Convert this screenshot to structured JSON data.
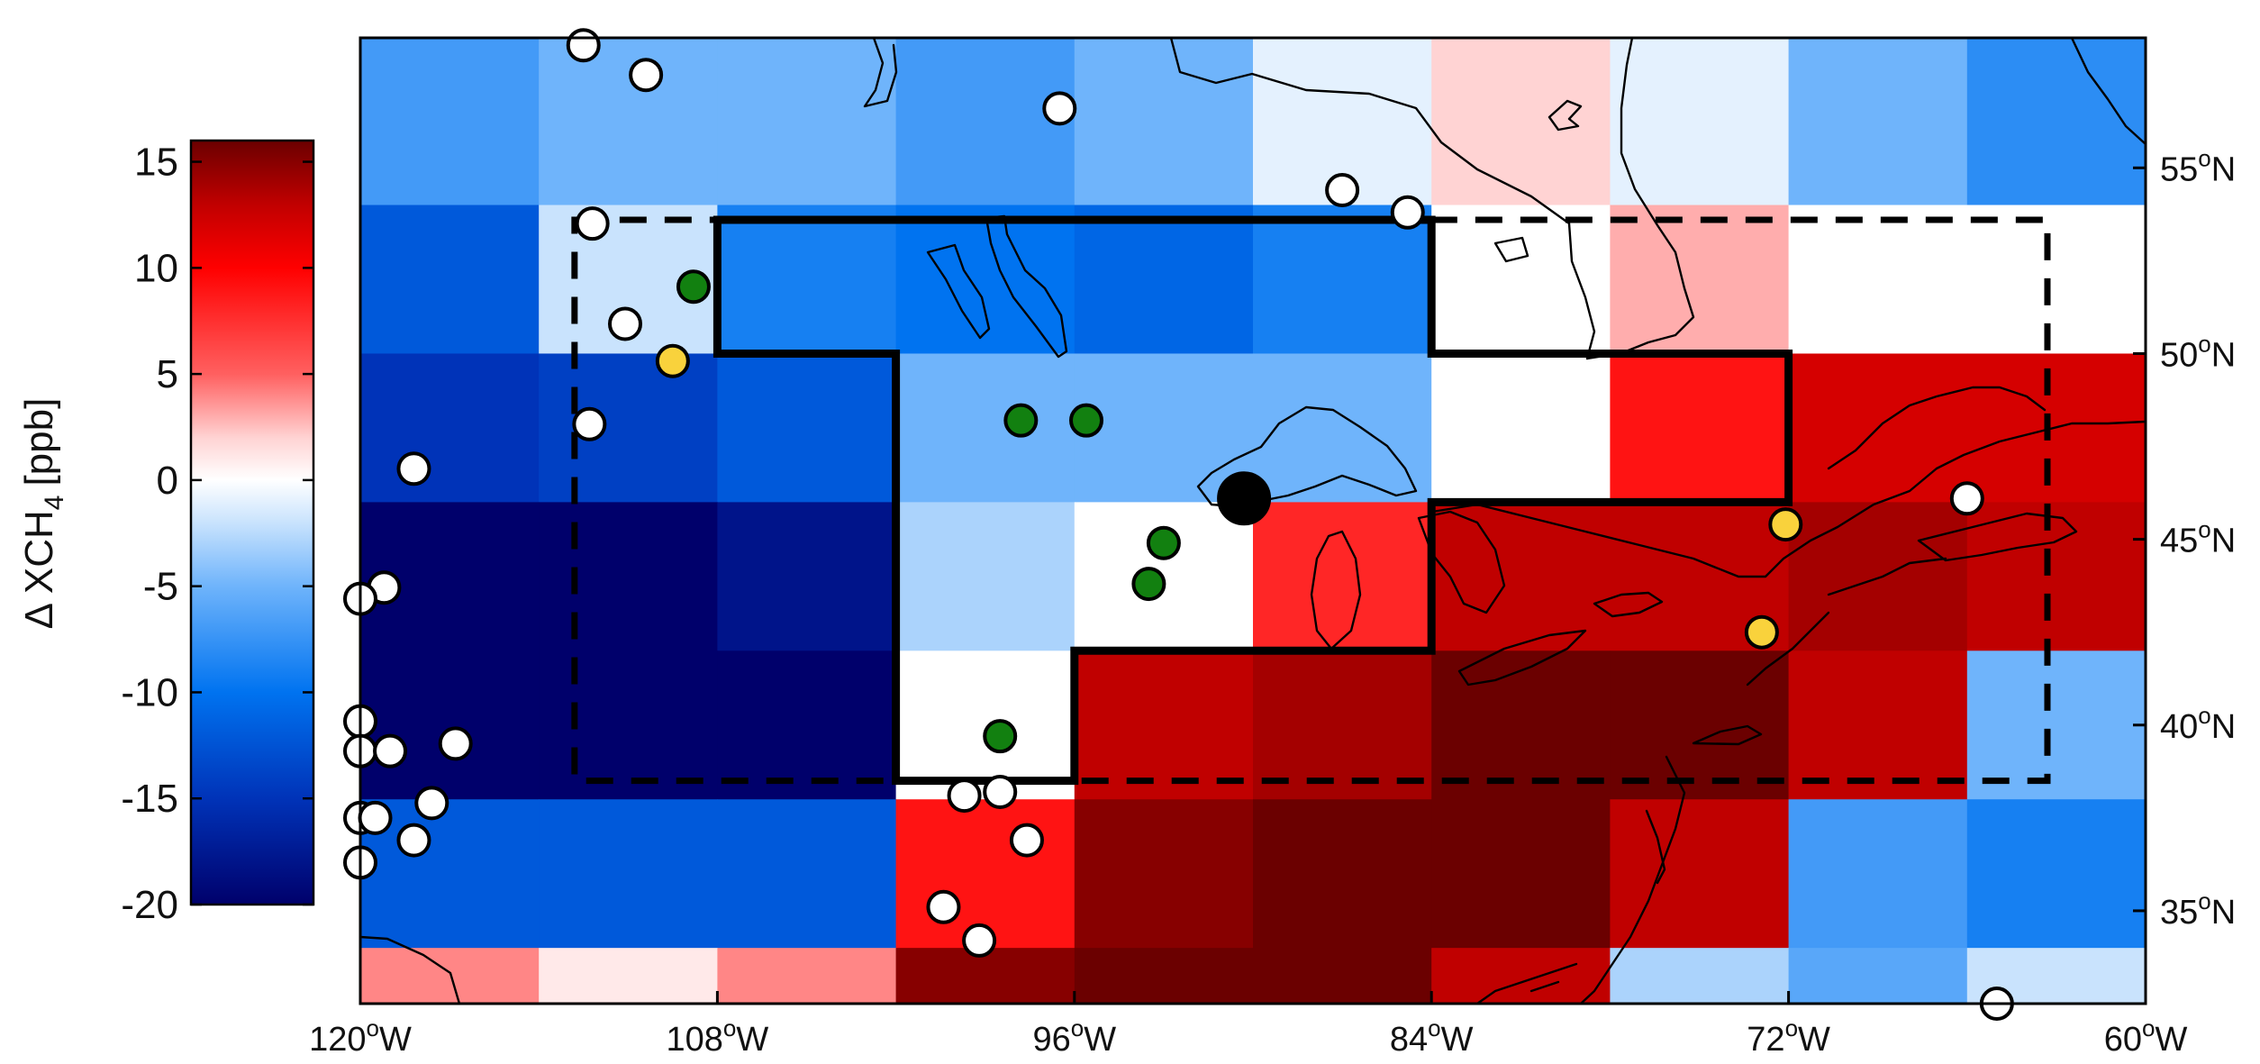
{
  "chart_data": {
    "type": "heatmap",
    "title": "",
    "xlabel": "",
    "ylabel": "",
    "colorbar": {
      "label_main": "Δ XCH",
      "label_sub": "4",
      "label_unit": "[ppb]",
      "range": [
        -20,
        16
      ],
      "ticks": [
        "15",
        "10",
        "5",
        "0",
        "-5",
        "-10",
        "-15",
        "-20"
      ],
      "tick_values": [
        15,
        10,
        5,
        0,
        -5,
        -10,
        -15,
        -20
      ],
      "colormap": "blue-white-red"
    },
    "x_ticks": [
      {
        "lon": -120,
        "num": "120",
        "deg": "o",
        "hem": "W"
      },
      {
        "lon": -108,
        "num": "108",
        "deg": "o",
        "hem": "W"
      },
      {
        "lon": -96,
        "num": "96",
        "deg": "o",
        "hem": "W"
      },
      {
        "lon": -84,
        "num": "84",
        "deg": "o",
        "hem": "W"
      },
      {
        "lon": -72,
        "num": "72",
        "deg": "o",
        "hem": "W"
      },
      {
        "lon": -60,
        "num": "60",
        "deg": "o",
        "hem": "W"
      }
    ],
    "y_ticks": [
      {
        "lat": 55,
        "num": "55",
        "deg": "o",
        "hem": "N"
      },
      {
        "lat": 50,
        "num": "50",
        "deg": "o",
        "hem": "N"
      },
      {
        "lat": 45,
        "num": "45",
        "deg": "o",
        "hem": "N"
      },
      {
        "lat": 40,
        "num": "40",
        "deg": "o",
        "hem": "N"
      },
      {
        "lat": 35,
        "num": "35",
        "deg": "o",
        "hem": "N"
      }
    ],
    "lon_range": [
      -120,
      -60
    ],
    "lat_range": [
      32.5,
      58.5
    ],
    "grid_lon_edges": [
      -120,
      -114,
      -108,
      -102,
      -96,
      -90,
      -84,
      -78,
      -72,
      -66,
      -60
    ],
    "grid_lat_edges": [
      58.5,
      54,
      50,
      46,
      42,
      38,
      34,
      32.5
    ],
    "grid_values": [
      [
        -7,
        -5,
        -5,
        -7,
        -5,
        -1,
        2,
        -1,
        -5,
        -8
      ],
      [
        -12,
        -2,
        -9,
        -10,
        -11,
        -9,
        0,
        3,
        0,
        0
      ],
      [
        -15,
        -14,
        -12,
        -5,
        -5,
        -5,
        0,
        9,
        12,
        12
      ],
      [
        -22,
        -22,
        -18,
        -3,
        0,
        8,
        13,
        13,
        14,
        13
      ],
      [
        -22,
        -22,
        -22,
        0,
        13,
        14,
        16,
        17,
        13,
        -5
      ],
      [
        -12,
        -12,
        -12,
        9,
        15,
        16,
        16,
        13,
        -7,
        -9
      ],
      [
        4,
        1,
        4,
        15,
        17,
        16,
        13,
        -3,
        -6,
        -2
      ]
    ],
    "solid_region_outline": [
      [
        -108,
        50
      ],
      [
        -108,
        53.6
      ],
      [
        -84,
        53.6
      ],
      [
        -84,
        50
      ],
      [
        -72,
        50
      ],
      [
        -72,
        46
      ],
      [
        -84,
        46
      ],
      [
        -84,
        42
      ],
      [
        -96,
        42
      ],
      [
        -96,
        38.5
      ],
      [
        -102,
        38.5
      ],
      [
        -102,
        50
      ]
    ],
    "dashed_region_box": {
      "west": -112.8,
      "east": -63.3,
      "south": 38.5,
      "north": 53.6
    },
    "sites": [
      {
        "lon": -112.5,
        "lat": 58.3,
        "color": "white"
      },
      {
        "lon": -110.4,
        "lat": 57.5,
        "color": "white"
      },
      {
        "lon": -96.5,
        "lat": 56.6,
        "color": "white"
      },
      {
        "lon": -87,
        "lat": 54.4,
        "color": "white"
      },
      {
        "lon": -84.8,
        "lat": 53.8,
        "color": "white"
      },
      {
        "lon": -112.2,
        "lat": 53.5,
        "color": "white"
      },
      {
        "lon": -111.1,
        "lat": 50.8,
        "color": "white"
      },
      {
        "lon": -112.3,
        "lat": 48.1,
        "color": "white"
      },
      {
        "lon": -118.2,
        "lat": 46.9,
        "color": "white"
      },
      {
        "lon": -119.2,
        "lat": 43.7,
        "color": "white"
      },
      {
        "lon": -120,
        "lat": 43.4,
        "color": "white"
      },
      {
        "lon": -120,
        "lat": 40.1,
        "color": "white"
      },
      {
        "lon": -120,
        "lat": 39.3,
        "color": "white"
      },
      {
        "lon": -119,
        "lat": 39.3,
        "color": "white"
      },
      {
        "lon": -116.8,
        "lat": 39.5,
        "color": "white"
      },
      {
        "lon": -117.6,
        "lat": 37.9,
        "color": "white"
      },
      {
        "lon": -120,
        "lat": 37.5,
        "color": "white"
      },
      {
        "lon": -119.5,
        "lat": 37.5,
        "color": "white"
      },
      {
        "lon": -118.2,
        "lat": 36.9,
        "color": "white"
      },
      {
        "lon": -120,
        "lat": 36.3,
        "color": "white"
      },
      {
        "lon": -99.7,
        "lat": 38.1,
        "color": "white"
      },
      {
        "lon": -98.5,
        "lat": 38.2,
        "color": "white"
      },
      {
        "lon": -97.6,
        "lat": 36.9,
        "color": "white"
      },
      {
        "lon": -100.4,
        "lat": 35.1,
        "color": "white"
      },
      {
        "lon": -99.2,
        "lat": 34.2,
        "color": "white"
      },
      {
        "lon": -66,
        "lat": 46.1,
        "color": "white"
      },
      {
        "lon": -65,
        "lat": 32.5,
        "color": "white"
      },
      {
        "lon": -108.8,
        "lat": 51.8,
        "color": "green"
      },
      {
        "lon": -97.8,
        "lat": 48.2,
        "color": "green"
      },
      {
        "lon": -95.6,
        "lat": 48.2,
        "color": "green"
      },
      {
        "lon": -93,
        "lat": 44.9,
        "color": "green"
      },
      {
        "lon": -93.5,
        "lat": 43.8,
        "color": "green"
      },
      {
        "lon": -98.5,
        "lat": 39.7,
        "color": "green"
      },
      {
        "lon": -109.5,
        "lat": 49.8,
        "color": "yellow"
      },
      {
        "lon": -72.1,
        "lat": 45.4,
        "color": "yellow"
      },
      {
        "lon": -72.9,
        "lat": 42.5,
        "color": "yellow"
      },
      {
        "lon": -90.3,
        "lat": 46.1,
        "color": "black"
      }
    ]
  },
  "colors": {
    "site_white": "#ffffff",
    "site_green": "#128010",
    "site_yellow": "#f9d23c",
    "site_black": "#000000"
  }
}
